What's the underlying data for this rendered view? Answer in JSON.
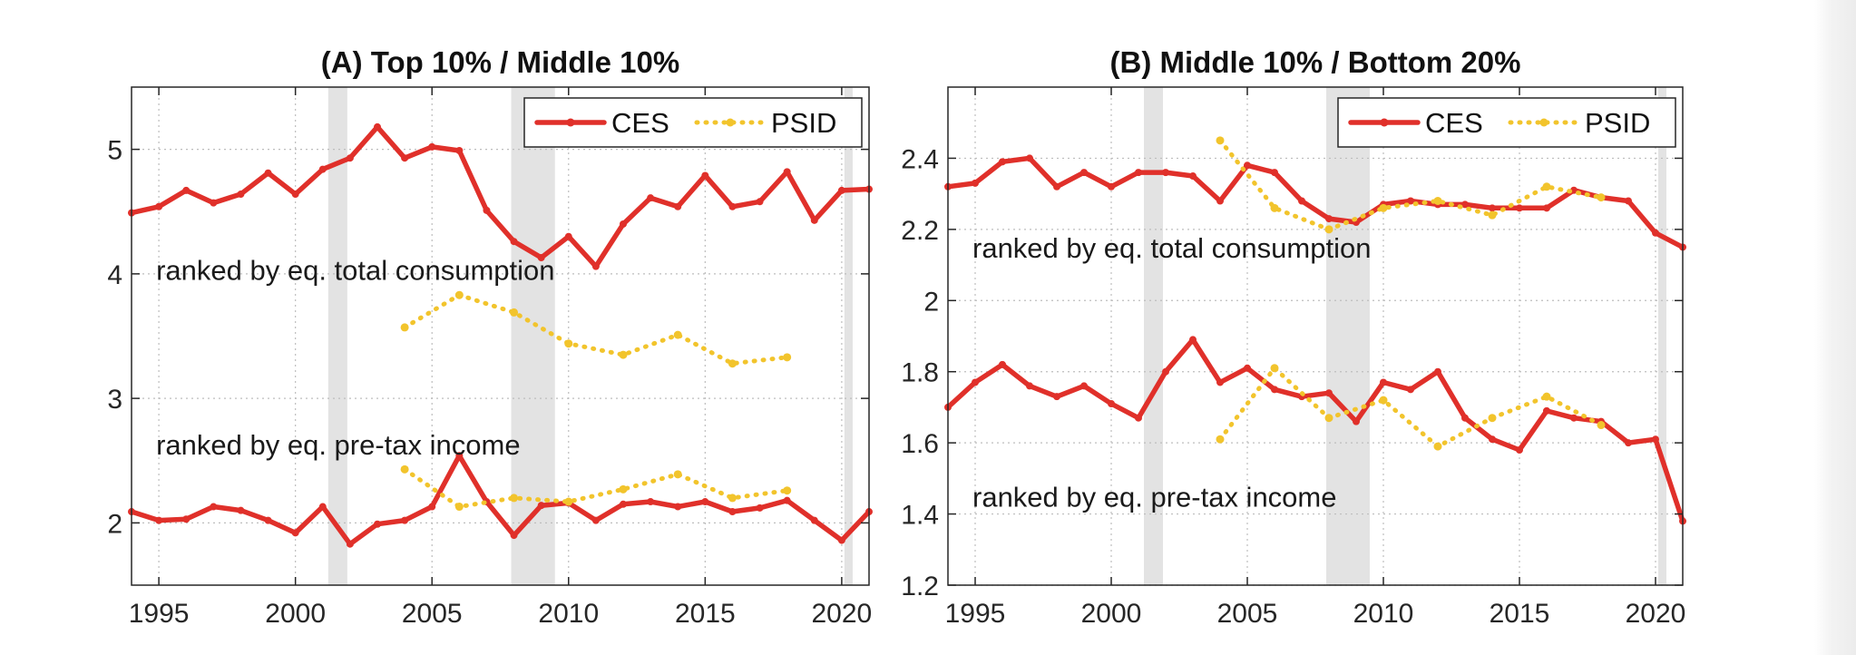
{
  "colors": {
    "ces": "#e0302a",
    "psid": "#f2c42c",
    "recession": "#e3e3e3",
    "grid": "#bdbdbd",
    "axis": "#262626"
  },
  "chart_data": [
    {
      "type": "line",
      "title": "(A) Top 10% / Middle 10%",
      "xlim": [
        1994,
        2021
      ],
      "ylim": [
        1.5,
        5.5
      ],
      "xticks": [
        1995,
        2000,
        2005,
        2010,
        2015,
        2020
      ],
      "xtick_labels": [
        "1995",
        "2000",
        "2005",
        "2010",
        "2015",
        "2020"
      ],
      "yticks": [
        2,
        3,
        4,
        5
      ],
      "ytick_labels": [
        "2",
        "3",
        "4",
        "5"
      ],
      "grid": true,
      "legend": {
        "position": "top-right",
        "entries": [
          "CES",
          "PSID"
        ]
      },
      "recessions": [
        [
          2001.2,
          2001.9
        ],
        [
          2007.9,
          2009.5
        ],
        [
          2020.1,
          2020.4
        ]
      ],
      "annotations": [
        {
          "text": "ranked by eq. total consumption",
          "x": 1994.9,
          "y": 3.95
        },
        {
          "text": "ranked by eq. pre-tax income",
          "x": 1994.9,
          "y": 2.55
        }
      ],
      "series": [
        {
          "name": "CES",
          "group": "total consumption",
          "style": "solid",
          "x": [
            1994,
            1995,
            1996,
            1997,
            1998,
            1999,
            2000,
            2001,
            2002,
            2003,
            2004,
            2005,
            2006,
            2007,
            2008,
            2009,
            2010,
            2011,
            2012,
            2013,
            2014,
            2015,
            2016,
            2017,
            2018,
            2019,
            2020,
            2021
          ],
          "y": [
            4.49,
            4.54,
            4.67,
            4.57,
            4.64,
            4.81,
            4.64,
            4.84,
            4.93,
            5.18,
            4.93,
            5.02,
            4.99,
            4.51,
            4.26,
            4.13,
            4.3,
            4.06,
            4.4,
            4.61,
            4.54,
            4.79,
            4.54,
            4.58,
            4.82,
            4.43,
            4.67,
            4.68
          ]
        },
        {
          "name": "PSID",
          "group": "total consumption",
          "style": "dotted",
          "x": [
            2004,
            2006,
            2008,
            2010,
            2012,
            2014,
            2016,
            2018
          ],
          "y": [
            3.57,
            3.83,
            3.69,
            3.44,
            3.35,
            3.51,
            3.28,
            3.33
          ]
        },
        {
          "name": "CES",
          "group": "pre-tax income",
          "style": "solid",
          "x": [
            1994,
            1995,
            1996,
            1997,
            1998,
            1999,
            2000,
            2001,
            2002,
            2003,
            2004,
            2005,
            2006,
            2007,
            2008,
            2009,
            2010,
            2011,
            2012,
            2013,
            2014,
            2015,
            2016,
            2017,
            2018,
            2019,
            2020,
            2021
          ],
          "y": [
            2.09,
            2.02,
            2.03,
            2.13,
            2.1,
            2.02,
            1.92,
            2.13,
            1.83,
            1.99,
            2.02,
            2.13,
            2.54,
            2.17,
            1.9,
            2.14,
            2.16,
            2.02,
            2.15,
            2.17,
            2.13,
            2.17,
            2.09,
            2.12,
            2.18,
            2.02,
            1.86,
            2.09
          ]
        },
        {
          "name": "PSID",
          "group": "pre-tax income",
          "style": "dotted",
          "x": [
            2004,
            2006,
            2008,
            2010,
            2012,
            2014,
            2016,
            2018
          ],
          "y": [
            2.43,
            2.13,
            2.2,
            2.17,
            2.27,
            2.39,
            2.2,
            2.26
          ]
        }
      ]
    },
    {
      "type": "line",
      "title": "(B) Middle 10% / Bottom 20%",
      "xlim": [
        1994,
        2021
      ],
      "ylim": [
        1.2,
        2.6
      ],
      "xticks": [
        1995,
        2000,
        2005,
        2010,
        2015,
        2020
      ],
      "xtick_labels": [
        "1995",
        "2000",
        "2005",
        "2010",
        "2015",
        "2020"
      ],
      "yticks": [
        1.2,
        1.4,
        1.6,
        1.8,
        2.0,
        2.2,
        2.4
      ],
      "ytick_labels": [
        "1.2",
        "1.4",
        "1.6",
        "1.8",
        "2",
        "2.2",
        "2.4"
      ],
      "grid": true,
      "legend": {
        "position": "top-right",
        "entries": [
          "CES",
          "PSID"
        ]
      },
      "recessions": [
        [
          2001.2,
          2001.9
        ],
        [
          2007.9,
          2009.5
        ],
        [
          2020.1,
          2020.4
        ]
      ],
      "annotations": [
        {
          "text": "ranked by eq. total consumption",
          "x": 1994.9,
          "y": 2.12
        },
        {
          "text": "ranked by eq. pre-tax income",
          "x": 1994.9,
          "y": 1.42
        }
      ],
      "series": [
        {
          "name": "CES",
          "group": "total consumption",
          "style": "solid",
          "x": [
            1994,
            1995,
            1996,
            1997,
            1998,
            1999,
            2000,
            2001,
            2002,
            2003,
            2004,
            2005,
            2006,
            2007,
            2008,
            2009,
            2010,
            2011,
            2012,
            2013,
            2014,
            2015,
            2016,
            2017,
            2018,
            2019,
            2020,
            2021
          ],
          "y": [
            2.32,
            2.33,
            2.39,
            2.4,
            2.32,
            2.36,
            2.32,
            2.36,
            2.36,
            2.35,
            2.28,
            2.38,
            2.36,
            2.28,
            2.23,
            2.22,
            2.27,
            2.28,
            2.27,
            2.27,
            2.26,
            2.26,
            2.26,
            2.31,
            2.29,
            2.28,
            2.19,
            2.15
          ]
        },
        {
          "name": "PSID",
          "group": "total consumption",
          "style": "dotted",
          "x": [
            2004,
            2006,
            2008,
            2010,
            2012,
            2014,
            2016,
            2018
          ],
          "y": [
            2.45,
            2.26,
            2.2,
            2.26,
            2.28,
            2.24,
            2.32,
            2.29
          ]
        },
        {
          "name": "CES",
          "group": "pre-tax income",
          "style": "solid",
          "x": [
            1994,
            1995,
            1996,
            1997,
            1998,
            1999,
            2000,
            2001,
            2002,
            2003,
            2004,
            2005,
            2006,
            2007,
            2008,
            2009,
            2010,
            2011,
            2012,
            2013,
            2014,
            2015,
            2016,
            2017,
            2018,
            2019,
            2020,
            2021
          ],
          "y": [
            1.7,
            1.77,
            1.82,
            1.76,
            1.73,
            1.76,
            1.71,
            1.67,
            1.8,
            1.89,
            1.77,
            1.81,
            1.75,
            1.73,
            1.74,
            1.66,
            1.77,
            1.75,
            1.8,
            1.67,
            1.61,
            1.58,
            1.69,
            1.67,
            1.66,
            1.6,
            1.61,
            1.38
          ]
        },
        {
          "name": "PSID",
          "group": "pre-tax income",
          "style": "dotted",
          "x": [
            2004,
            2006,
            2008,
            2010,
            2012,
            2014,
            2016,
            2018
          ],
          "y": [
            1.61,
            1.81,
            1.67,
            1.72,
            1.59,
            1.67,
            1.73,
            1.65
          ]
        }
      ]
    }
  ]
}
